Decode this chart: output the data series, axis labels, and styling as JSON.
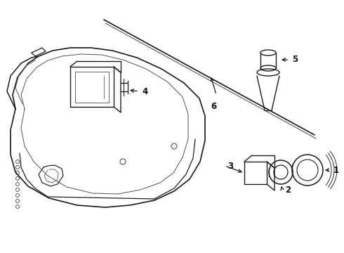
{
  "background_color": "#ffffff",
  "line_color": "#1a1a1a",
  "line_width": 1.1,
  "label_fontsize": 8.5,
  "label_color": "#111111",
  "fig_width": 4.9,
  "fig_height": 3.6,
  "dpi": 100
}
